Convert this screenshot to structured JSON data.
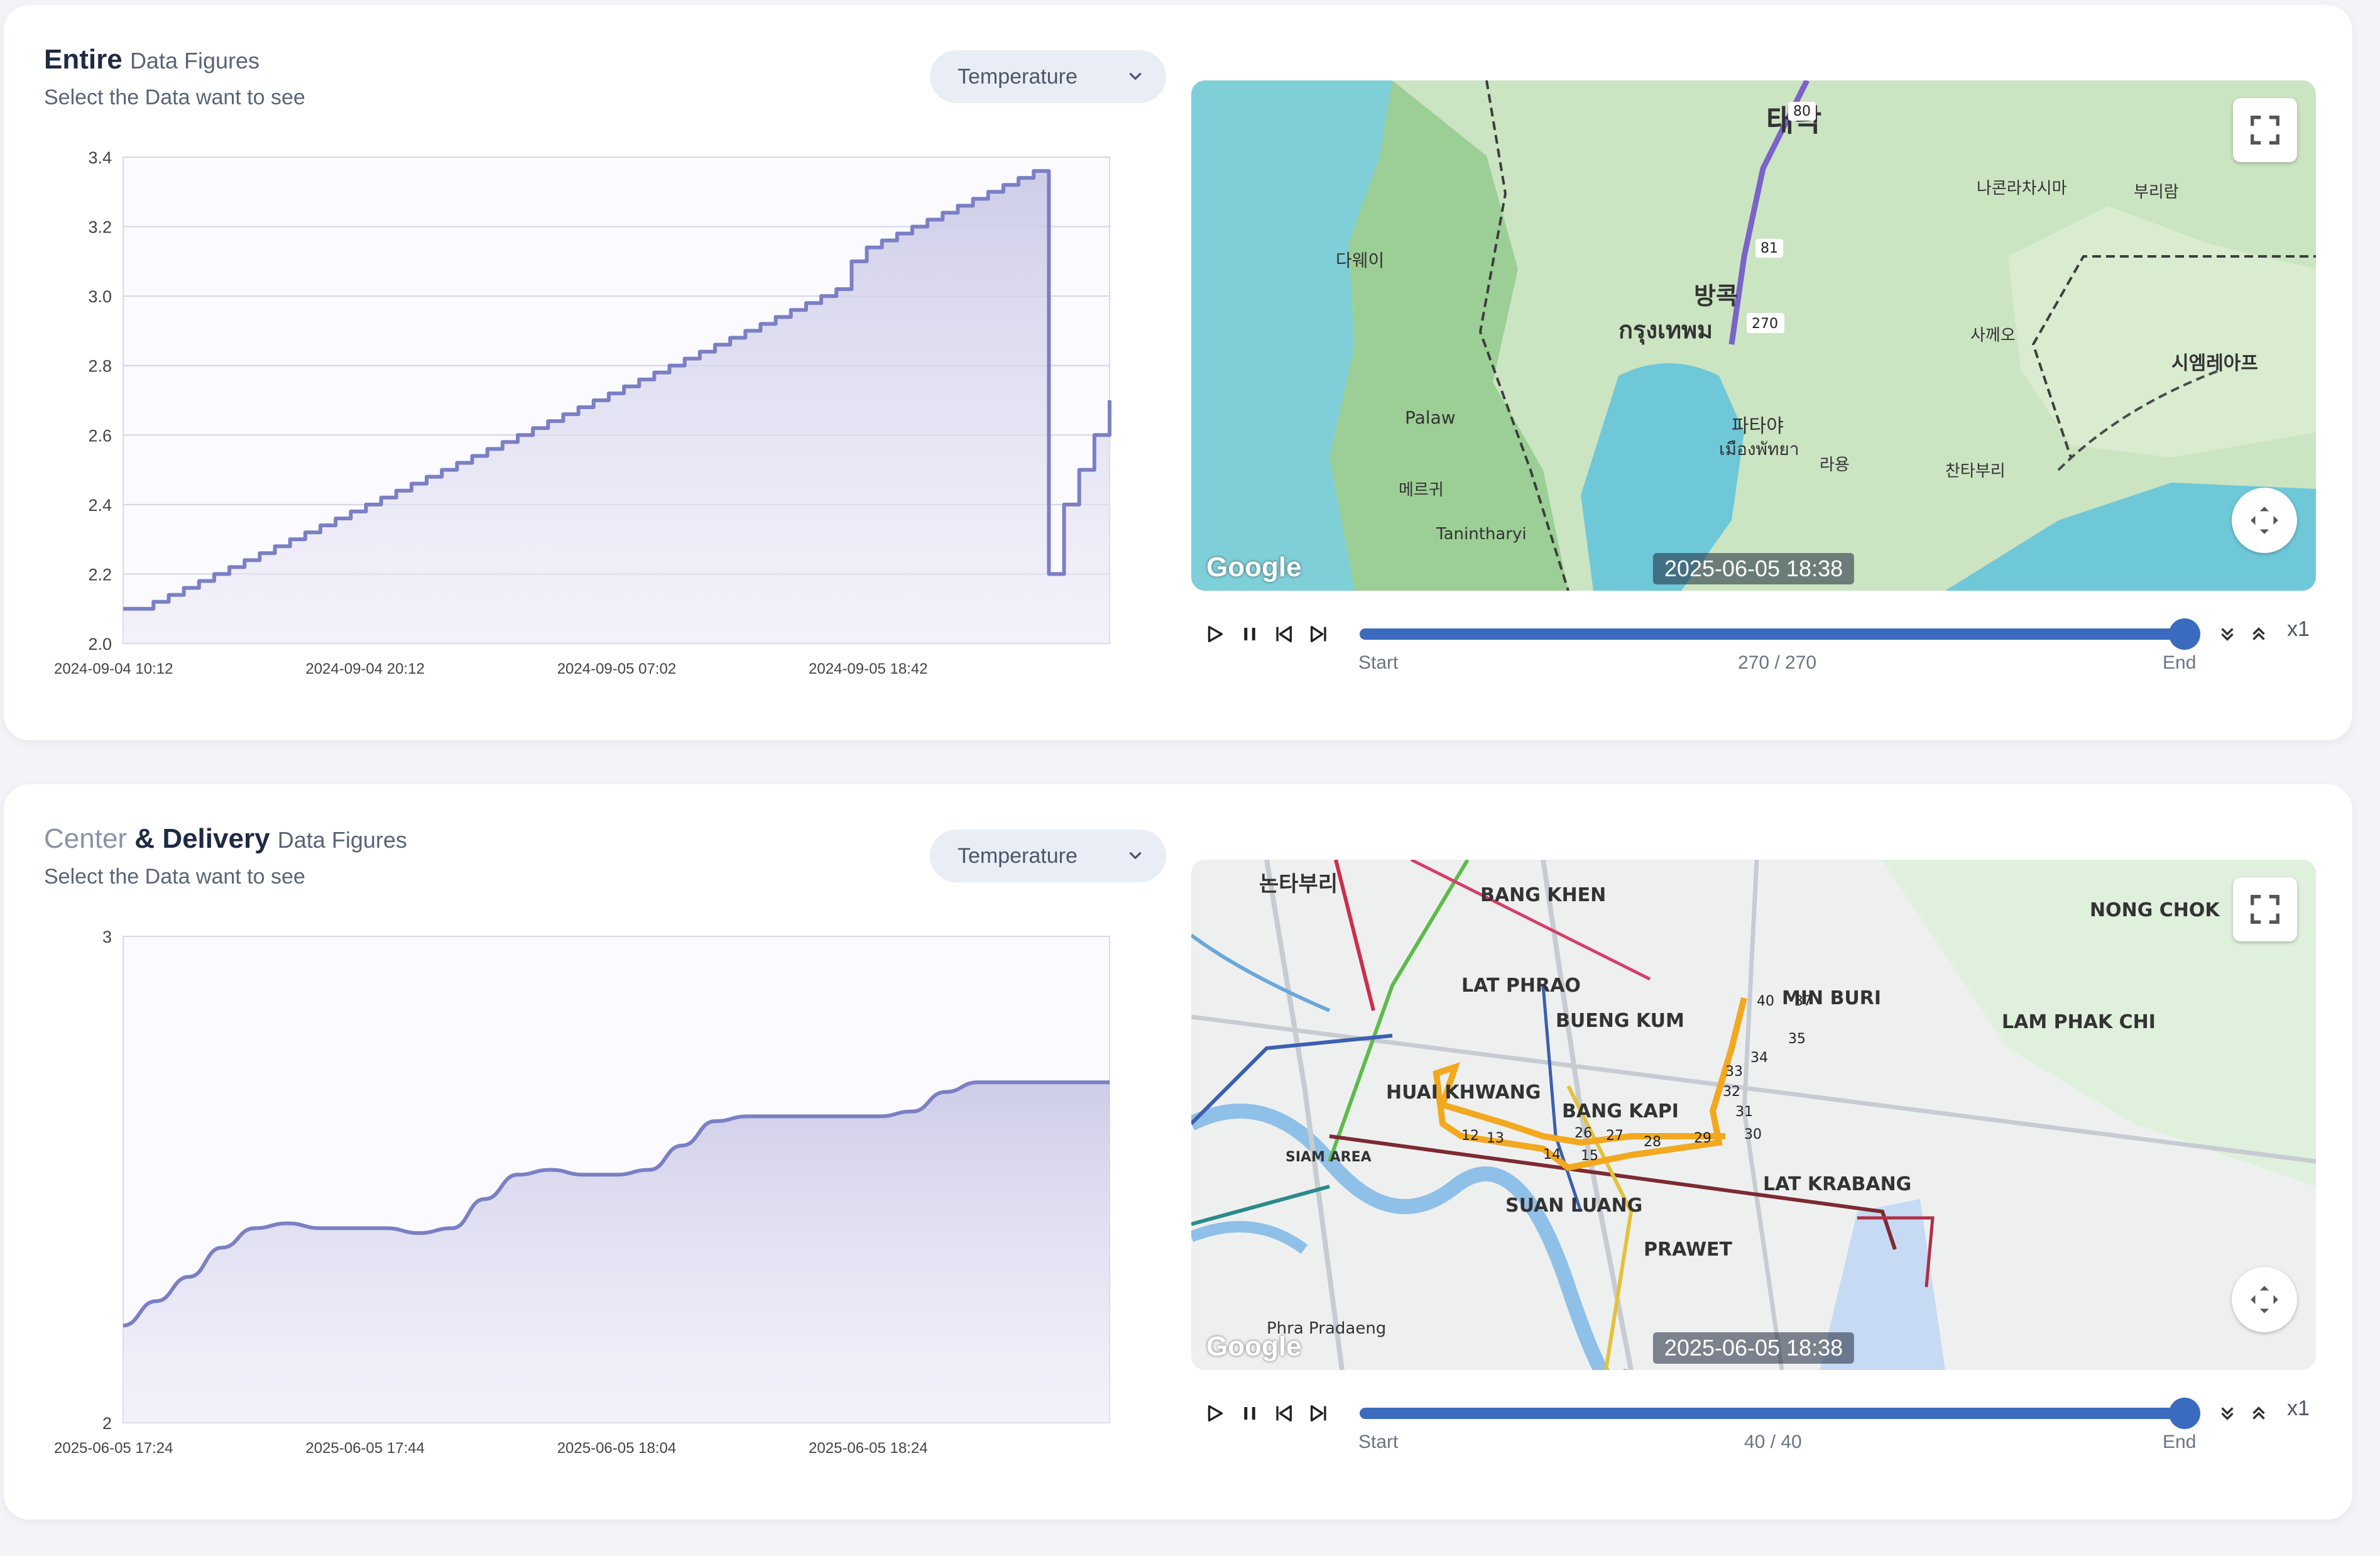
{
  "panels": [
    {
      "title_main": "Entire",
      "title_small": "Data Figures",
      "subtitle": "Select the Data want to see",
      "dropdown_value": "Temperature",
      "chart_data": {
        "type": "area",
        "title": "",
        "xlabel": "",
        "ylabel": "",
        "ylim": [
          2.0,
          3.4
        ],
        "y_ticks": [
          "2.0",
          "2.2",
          "2.4",
          "2.6",
          "2.8",
          "3.0",
          "3.2",
          "3.4"
        ],
        "x_ticks": [
          "2024-09-04 10:12",
          "2024-09-04 20:12",
          "2024-09-05 07:02",
          "2024-09-05 18:42"
        ],
        "grid": true,
        "step": true,
        "color": "#7b7fc4",
        "series": [
          {
            "values": [
              2.1,
              2.1,
              2.12,
              2.14,
              2.16,
              2.18,
              2.2,
              2.22,
              2.24,
              2.26,
              2.28,
              2.3,
              2.32,
              2.34,
              2.36,
              2.38,
              2.4,
              2.42,
              2.44,
              2.46,
              2.48,
              2.5,
              2.52,
              2.54,
              2.56,
              2.58,
              2.6,
              2.62,
              2.64,
              2.66,
              2.68,
              2.7,
              2.72,
              2.74,
              2.76,
              2.78,
              2.8,
              2.82,
              2.84,
              2.86,
              2.88,
              2.9,
              2.92,
              2.94,
              2.96,
              2.98,
              3.0,
              3.02,
              3.1,
              3.14,
              3.16,
              3.18,
              3.2,
              3.22,
              3.24,
              3.26,
              3.28,
              3.3,
              3.32,
              3.34,
              3.36,
              2.2,
              2.4,
              2.5,
              2.6,
              2.7
            ]
          }
        ]
      },
      "map": {
        "timestamp": "2025-06-05 18:38",
        "watermark": "Google",
        "labels": [
          "방콕",
          "กรุงเทพม",
          "태락",
          "파타야",
          "เมืองพัทยา",
          "다웨이",
          "Palaw",
          "Tanintharyi",
          "시엠레아프",
          "나콘라차시마",
          "부리람",
          "사께오",
          "찬타부리",
          "라용",
          "메르귀"
        ],
        "markers": [
          "80",
          "81",
          "270"
        ]
      },
      "player": {
        "start": "Start",
        "end": "End",
        "counter": "270 / 270",
        "progress": 1.0,
        "speed": "x1"
      }
    },
    {
      "title_light": "Center",
      "title_amp": " & ",
      "title_dark": "Delivery",
      "title_small": "Data Figures",
      "subtitle": "Select the Data want to see",
      "dropdown_value": "Temperature",
      "chart_data": {
        "type": "area",
        "title": "",
        "xlabel": "",
        "ylabel": "",
        "ylim": [
          2,
          3
        ],
        "y_ticks": [
          "2",
          "3"
        ],
        "x_ticks": [
          "2025-06-05 17:24",
          "2025-06-05 17:44",
          "2025-06-05 18:04",
          "2025-06-05 18:24"
        ],
        "grid": false,
        "step": false,
        "color": "#7b7fc4",
        "series": [
          {
            "values": [
              2.2,
              2.25,
              2.3,
              2.36,
              2.4,
              2.41,
              2.4,
              2.4,
              2.4,
              2.39,
              2.4,
              2.46,
              2.51,
              2.52,
              2.51,
              2.51,
              2.52,
              2.57,
              2.62,
              2.63,
              2.63,
              2.63,
              2.63,
              2.63,
              2.64,
              2.68,
              2.7,
              2.7,
              2.7,
              2.7,
              2.7
            ]
          }
        ]
      },
      "map": {
        "timestamp": "2025-06-05 18:38",
        "watermark": "Google",
        "labels": [
          "BANG KHEN",
          "LAT PHRAO",
          "BUENG KUM",
          "BANG KAPI",
          "SUAN LUANG",
          "PRAWET",
          "LAT KRABANG",
          "NONG CHOK",
          "LAM PHAK CHI",
          "HUAI KHWANG",
          "SIAM AREA",
          "MIN BURI",
          "Phra Pradaeng",
          "논타부리"
        ],
        "markers": [
          "40",
          "37",
          "35",
          "34",
          "33",
          "32",
          "31",
          "30",
          "29",
          "28",
          "27",
          "26",
          "15",
          "14",
          "13",
          "12"
        ]
      },
      "player": {
        "start": "Start",
        "end": "End",
        "counter": "40 / 40",
        "progress": 1.0,
        "speed": "x1"
      }
    }
  ]
}
